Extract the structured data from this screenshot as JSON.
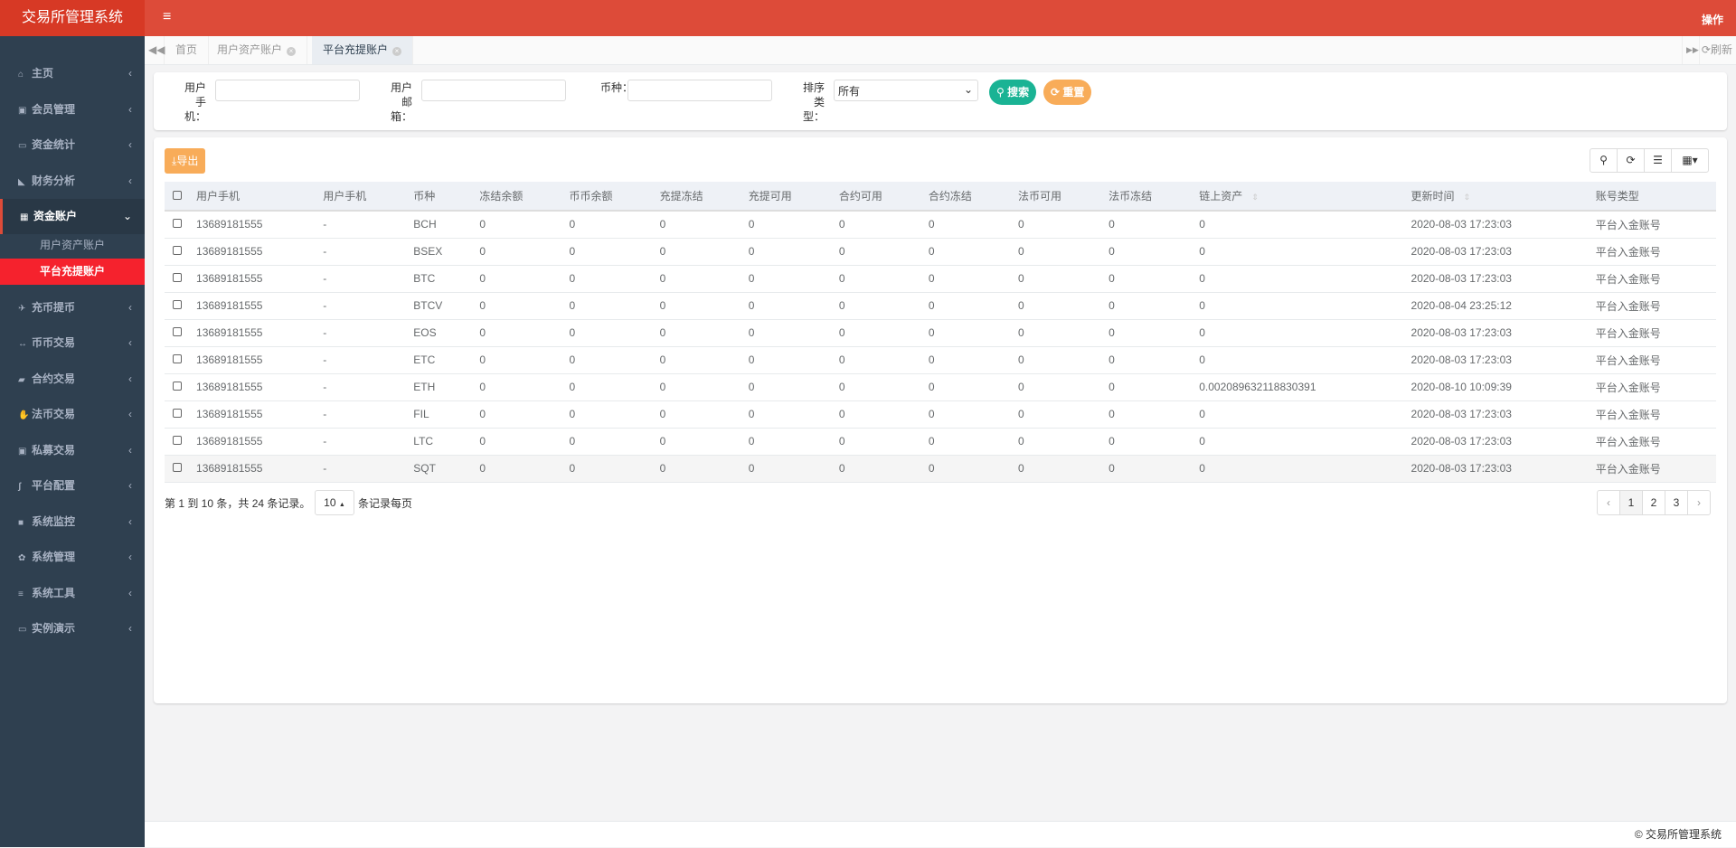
{
  "app": {
    "title": "交易所管理系统",
    "op_label": "操作",
    "footer": "© 交易所管理系统"
  },
  "sidebar": {
    "items": [
      {
        "label": "主页",
        "icon": "home-icon"
      },
      {
        "label": "会员管理",
        "icon": "contact-card-icon"
      },
      {
        "label": "资金统计",
        "icon": "card-icon"
      },
      {
        "label": "财务分析",
        "icon": "area-chart-icon"
      },
      {
        "label": "资金账户",
        "icon": "calculator-icon",
        "open": true,
        "children": [
          {
            "label": "用户资产账户"
          },
          {
            "label": "平台充提账户",
            "active": true
          }
        ]
      },
      {
        "label": "充币提币",
        "icon": "plane-icon"
      },
      {
        "label": "币币交易",
        "icon": "arrows-h-icon"
      },
      {
        "label": "合约交易",
        "icon": "book-icon"
      },
      {
        "label": "法币交易",
        "icon": "handshake-icon"
      },
      {
        "label": "私募交易",
        "icon": "contact-card-icon"
      },
      {
        "label": "平台配置",
        "icon": "assistive-icon"
      },
      {
        "label": "系统监控",
        "icon": "video-icon"
      },
      {
        "label": "系统管理",
        "icon": "gear-icon"
      },
      {
        "label": "系统工具",
        "icon": "bars-icon"
      },
      {
        "label": "实例演示",
        "icon": "desktop-icon"
      }
    ]
  },
  "tabs": {
    "items": [
      {
        "label": "首页"
      },
      {
        "label": "用户资产账户"
      },
      {
        "label": "平台充提账户",
        "active": true
      }
    ],
    "refresh": "刷新"
  },
  "search": {
    "phone_label": "用户手机：",
    "phone_value": "",
    "email_label": "用户邮箱：",
    "email_value": "",
    "coin_label": "币种：",
    "coin_value": "",
    "sort_label": "排序类型：",
    "sort_value": "所有",
    "search_btn": "搜索",
    "reset_btn": "重置"
  },
  "toolbar": {
    "export": "导出"
  },
  "table": {
    "columns": [
      "用户手机",
      "用户手机",
      "币种",
      "冻结余额",
      "币币余额",
      "充提冻结",
      "充提可用",
      "合约可用",
      "合约冻结",
      "法币可用",
      "法币冻结",
      "链上资产",
      "更新时间",
      "账号类型"
    ],
    "rows": [
      [
        "13689181555",
        "-",
        "BCH",
        "0",
        "0",
        "0",
        "0",
        "0",
        "0",
        "0",
        "0",
        "0",
        "2020-08-03 17:23:03",
        "平台入金账号"
      ],
      [
        "13689181555",
        "-",
        "BSEX",
        "0",
        "0",
        "0",
        "0",
        "0",
        "0",
        "0",
        "0",
        "0",
        "2020-08-03 17:23:03",
        "平台入金账号"
      ],
      [
        "13689181555",
        "-",
        "BTC",
        "0",
        "0",
        "0",
        "0",
        "0",
        "0",
        "0",
        "0",
        "0",
        "2020-08-03 17:23:03",
        "平台入金账号"
      ],
      [
        "13689181555",
        "-",
        "BTCV",
        "0",
        "0",
        "0",
        "0",
        "0",
        "0",
        "0",
        "0",
        "0",
        "2020-08-04 23:25:12",
        "平台入金账号"
      ],
      [
        "13689181555",
        "-",
        "EOS",
        "0",
        "0",
        "0",
        "0",
        "0",
        "0",
        "0",
        "0",
        "0",
        "2020-08-03 17:23:03",
        "平台入金账号"
      ],
      [
        "13689181555",
        "-",
        "ETC",
        "0",
        "0",
        "0",
        "0",
        "0",
        "0",
        "0",
        "0",
        "0",
        "2020-08-03 17:23:03",
        "平台入金账号"
      ],
      [
        "13689181555",
        "-",
        "ETH",
        "0",
        "0",
        "0",
        "0",
        "0",
        "0",
        "0",
        "0",
        "0.002089632118830391",
        "2020-08-10 10:09:39",
        "平台入金账号"
      ],
      [
        "13689181555",
        "-",
        "FIL",
        "0",
        "0",
        "0",
        "0",
        "0",
        "0",
        "0",
        "0",
        "0",
        "2020-08-03 17:23:03",
        "平台入金账号"
      ],
      [
        "13689181555",
        "-",
        "LTC",
        "0",
        "0",
        "0",
        "0",
        "0",
        "0",
        "0",
        "0",
        "0",
        "2020-08-03 17:23:03",
        "平台入金账号"
      ],
      [
        "13689181555",
        "-",
        "SQT",
        "0",
        "0",
        "0",
        "0",
        "0",
        "0",
        "0",
        "0",
        "0",
        "2020-08-03 17:23:03",
        "平台入金账号"
      ]
    ]
  },
  "pagination": {
    "summary": "第 1 到 10 条，共 24 条记录。",
    "page_size": "10",
    "per_page_label": "条记录每页",
    "prev": "‹",
    "next": "›",
    "pages": [
      "1",
      "2",
      "3"
    ],
    "current": "1"
  }
}
